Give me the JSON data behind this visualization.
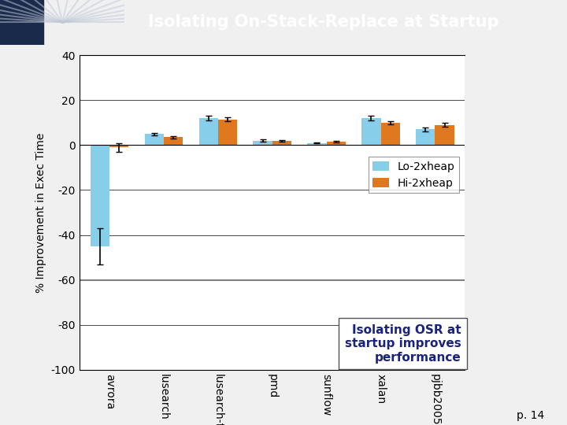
{
  "title": "Isolating On-Stack-Replace at Startup",
  "ylabel": "% Improvement in Exec Time",
  "categories": [
    "avrora",
    "lusearch",
    "lusearch-fix",
    "pmd",
    "sunflow",
    "xalan",
    "pjbb2005"
  ],
  "lo_values": [
    -45,
    5,
    12,
    2,
    1,
    12,
    7
  ],
  "hi_values": [
    -1,
    3.5,
    11.5,
    2,
    1.5,
    10,
    9
  ],
  "lo_errors": [
    8,
    0.5,
    1,
    0.5,
    0.3,
    1,
    1
  ],
  "hi_errors": [
    2,
    0.4,
    0.8,
    0.4,
    0.3,
    0.8,
    0.8
  ],
  "lo_color": "#87CEEB",
  "hi_color": "#E07820",
  "ylim": [
    -100,
    40
  ],
  "yticks": [
    -100,
    -80,
    -60,
    -40,
    -20,
    0,
    20,
    40
  ],
  "legend_lo": "Lo-2xheap",
  "legend_hi": "Hi-2xheap",
  "annotation": "Isolating OSR at\nstartup improves\nperformance",
  "background_color": "#f0f0f0",
  "header_color": "#8080A8",
  "title_color": "#ffffff",
  "page": "p. 14",
  "bar_width": 0.35,
  "annotation_color": "#1a237e",
  "grid_color": "#000000",
  "gray_line_y": -60
}
